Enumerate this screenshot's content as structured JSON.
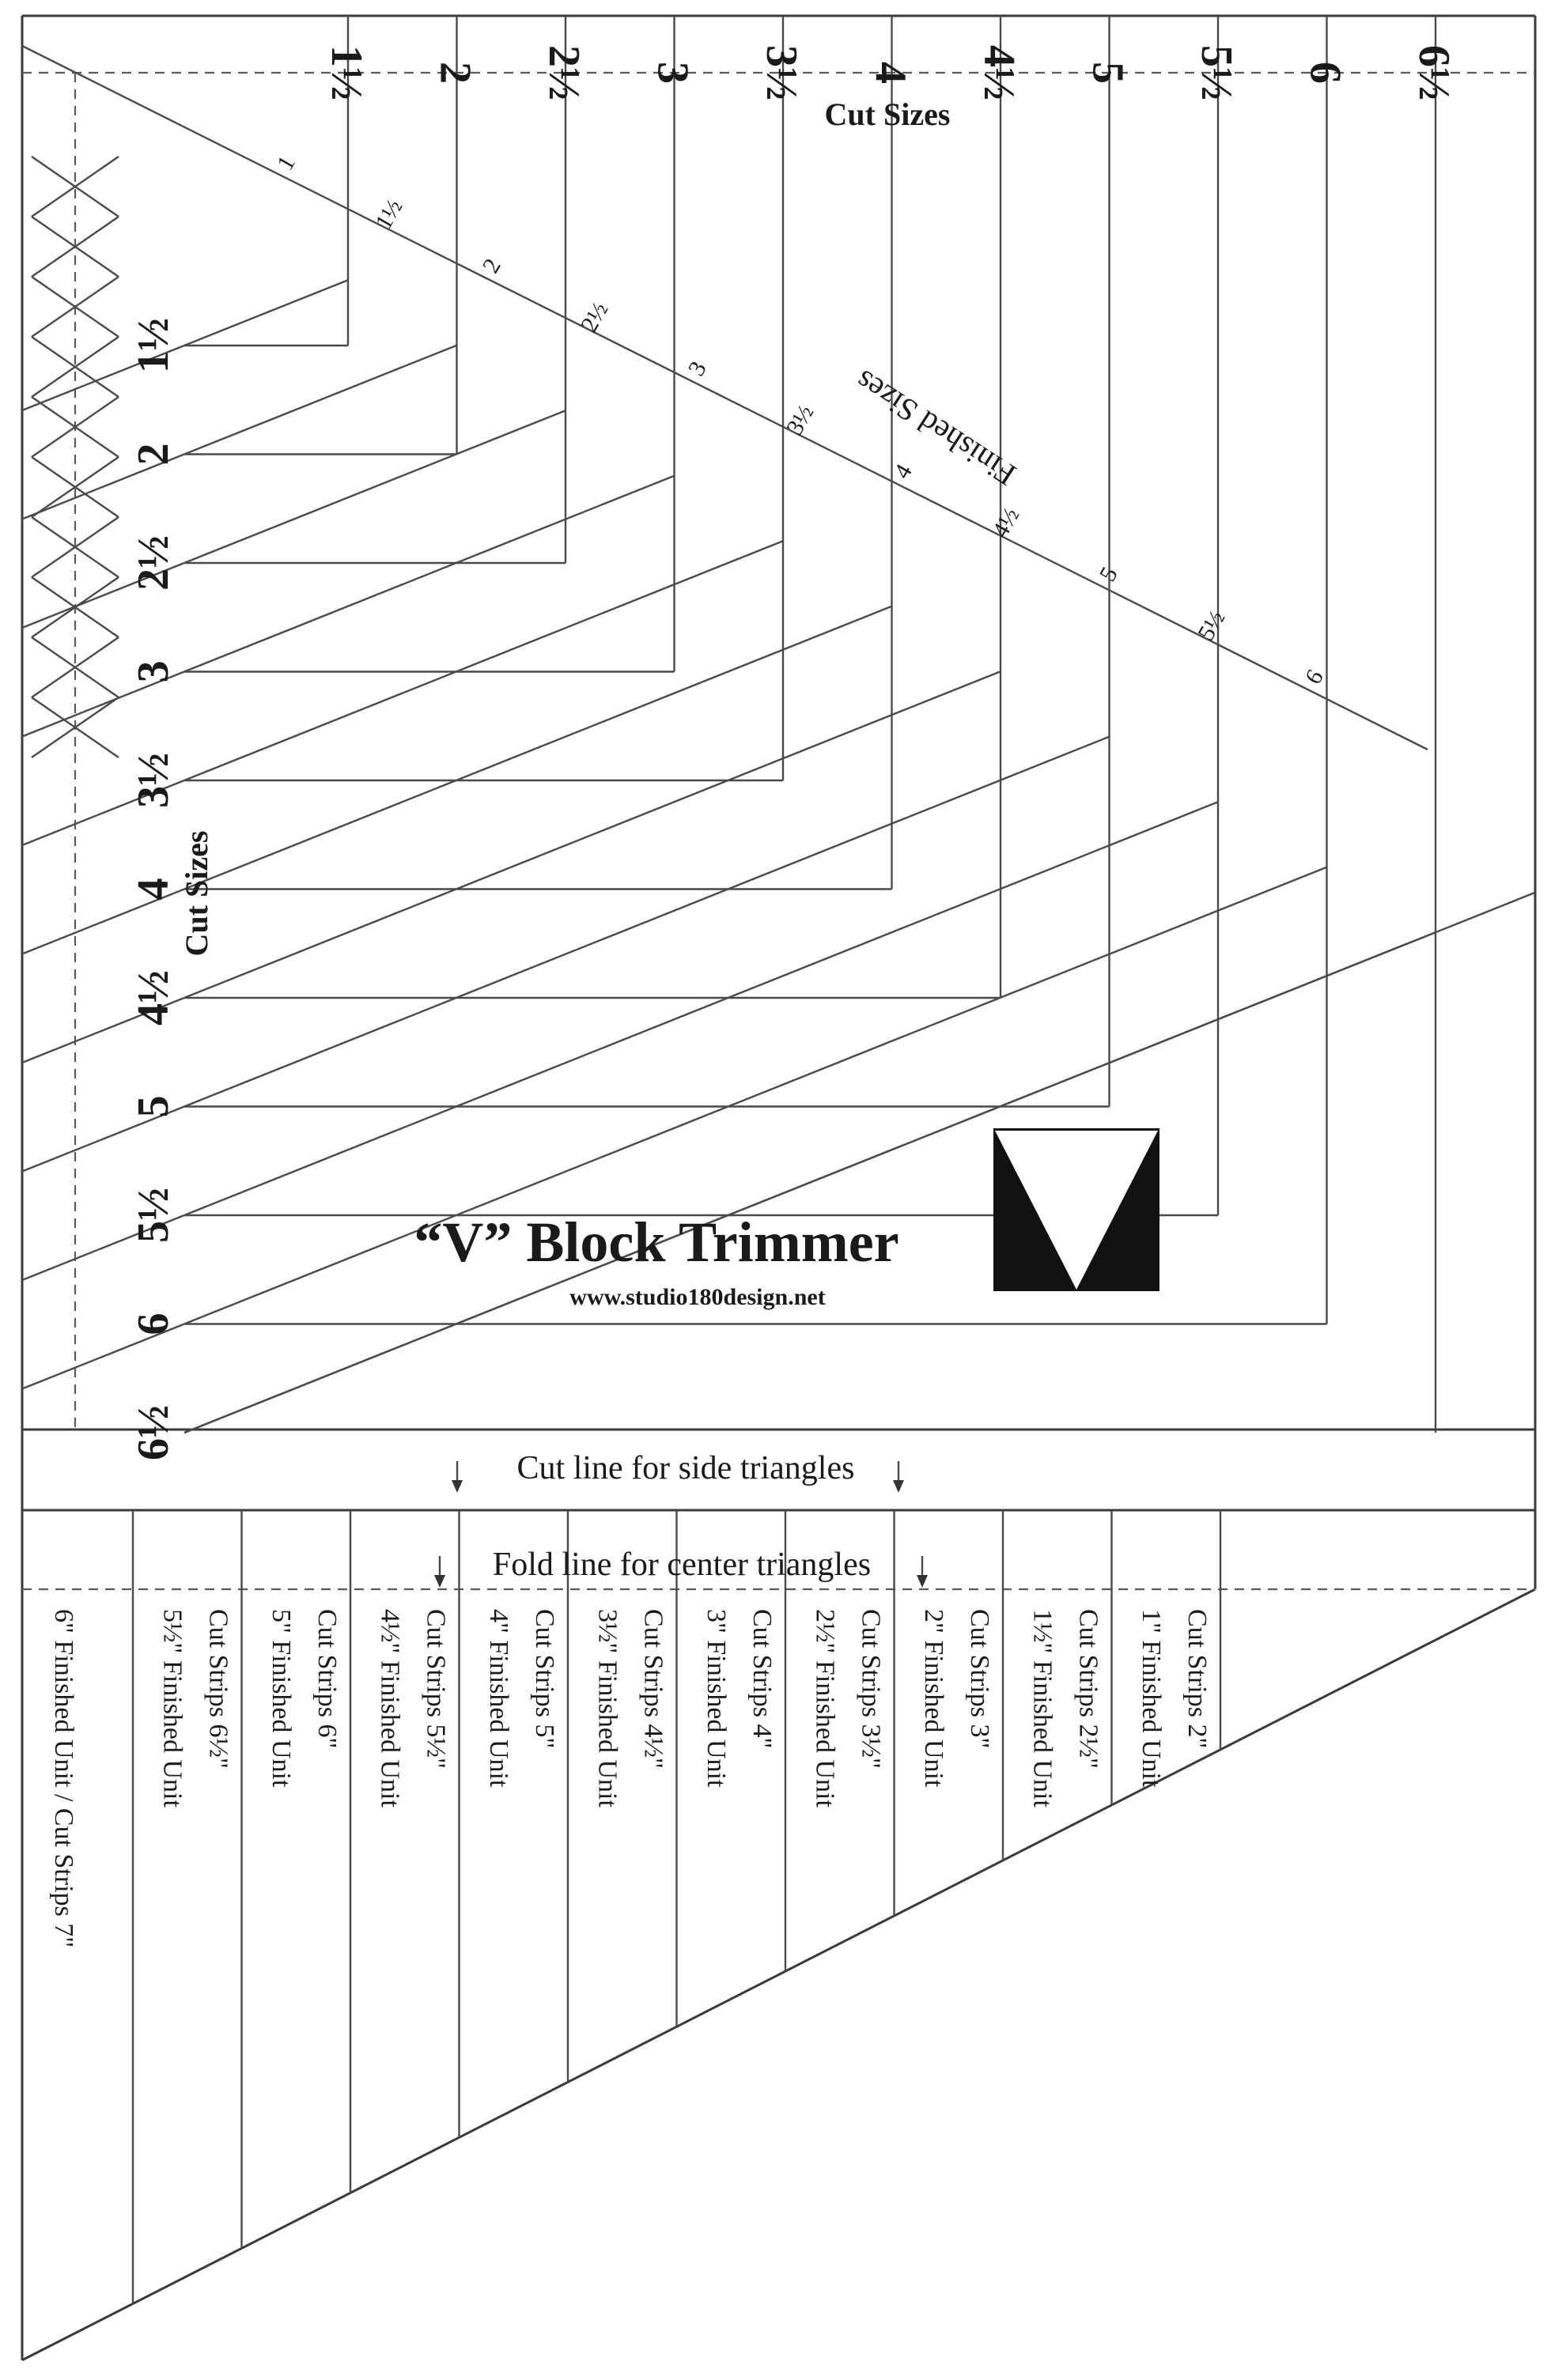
{
  "diagram": {
    "title": "“V” Block Trimmer",
    "website": "www.studio180design.net",
    "top_axis_label": "Cut Sizes",
    "left_axis_label": "Cut Sizes",
    "diagonal_label": "Finished Sizes",
    "cut_sizes": [
      "1½",
      "2",
      "2½",
      "3",
      "3½",
      "4",
      "4½",
      "5",
      "5½",
      "6",
      "6½"
    ],
    "finished_sizes": [
      "1",
      "1½",
      "2",
      "2½",
      "3",
      "3½",
      "4",
      "4½",
      "5",
      "5½",
      "6"
    ],
    "cut_line_label": "Cut line for side triangles",
    "fold_line_label": "Fold line for center triangles",
    "strips": [
      {
        "unit": "6\" Finished Unit / Cut Strips 7\"",
        "cut": ""
      },
      {
        "unit": "5½\" Finished Unit",
        "cut": "Cut Strips 6½\""
      },
      {
        "unit": "5\" Finished Unit",
        "cut": "Cut Strips 6\""
      },
      {
        "unit": "4½\" Finished Unit",
        "cut": "Cut Strips 5½\""
      },
      {
        "unit": "4\" Finished Unit",
        "cut": "Cut Strips 5\""
      },
      {
        "unit": "3½\" Finished Unit",
        "cut": "Cut Strips 4½\""
      },
      {
        "unit": "3\" Finished Unit",
        "cut": "Cut Strips 4\""
      },
      {
        "unit": "2½\" Finished Unit",
        "cut": "Cut Strips 3½\""
      },
      {
        "unit": "2\" Finished Unit",
        "cut": "Cut Strips 3\""
      },
      {
        "unit": "1½\" Finished Unit",
        "cut": "Cut Strips 2½\""
      },
      {
        "unit": "1\" Finished Unit",
        "cut": "Cut Strips 2\""
      }
    ]
  }
}
